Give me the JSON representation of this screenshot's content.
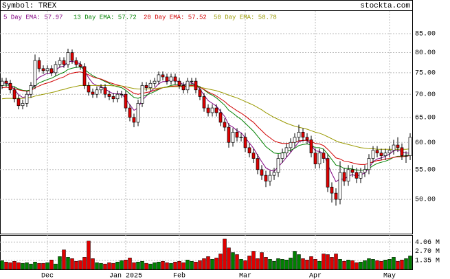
{
  "chart_data": [
    {
      "type": "candlestick",
      "title": "Symbol: TREX",
      "source": "stockta.com",
      "open": [
        72,
        73,
        72.5,
        71,
        69,
        67.5,
        68,
        70,
        72,
        78,
        76,
        75.5,
        76,
        75,
        77,
        78,
        77,
        80,
        78,
        77,
        76.5,
        72,
        70.5,
        70,
        71,
        71.5,
        70,
        69.5,
        69,
        70,
        70,
        67,
        65,
        64,
        68,
        72,
        71.5,
        72.5,
        73,
        74.5,
        74,
        73,
        74,
        73,
        72,
        71,
        73,
        73,
        71,
        69.5,
        67,
        66,
        67,
        66,
        64,
        63,
        60,
        62,
        61,
        61,
        59,
        58,
        57,
        55,
        54,
        53,
        54,
        54.5,
        57,
        58,
        59,
        60,
        61,
        62,
        61,
        60.5,
        58,
        56,
        58,
        57,
        52,
        51,
        50,
        54.5,
        53,
        55,
        54.5,
        53.5,
        54.5,
        55,
        57,
        58.5,
        58,
        57.5,
        58,
        58.5,
        59.5,
        59,
        57.5,
        57.5
      ],
      "high": [
        73.8,
        73.8,
        73.3,
        71.8,
        69.8,
        68.8,
        70.8,
        72.8,
        79.5,
        78.8,
        76.8,
        76.8,
        76.8,
        77.8,
        78.8,
        78.8,
        81,
        80.8,
        78.8,
        77.8,
        77.3,
        72.8,
        71.3,
        71.8,
        72.3,
        72.3,
        70.8,
        70.3,
        70.8,
        70.8,
        70.8,
        67.8,
        65.8,
        68.8,
        72.8,
        72.8,
        73.3,
        73.8,
        75.3,
        75.3,
        74.8,
        74.8,
        74.8,
        73.8,
        72.8,
        73.8,
        73.8,
        73.8,
        71.8,
        70.3,
        67.8,
        67.8,
        67.8,
        66.8,
        64.8,
        63.8,
        62.8,
        62.8,
        61.8,
        61.8,
        59.8,
        58.8,
        57.8,
        55.8,
        54.8,
        54.8,
        55.3,
        57.8,
        58.8,
        59.8,
        60.8,
        61.8,
        63.5,
        62.8,
        61.8,
        61.3,
        58.8,
        58.8,
        58.8,
        57.8,
        52.8,
        51.8,
        56.5,
        55.3,
        55.8,
        55.8,
        55.3,
        55.3,
        55.8,
        57.8,
        59.3,
        59.3,
        58.8,
        58.8,
        59.3,
        60.5,
        61,
        59.8,
        58.3,
        61.8
      ],
      "low": [
        71.2,
        71.7,
        70.2,
        68.2,
        66.7,
        66.7,
        67.2,
        69.2,
        71.2,
        75.2,
        74.7,
        74.7,
        74.2,
        74.2,
        76.2,
        76.2,
        76.2,
        77.2,
        76.2,
        75.7,
        71.2,
        69.7,
        69.2,
        69.2,
        70.2,
        69.2,
        68.7,
        68.2,
        68.2,
        69.2,
        66.2,
        64.2,
        63,
        63.2,
        67.2,
        70.7,
        70.7,
        71.7,
        72.2,
        73.2,
        72.2,
        72.2,
        72.2,
        71.2,
        70.2,
        70.2,
        72.2,
        70.2,
        68.7,
        66.2,
        65.2,
        65.2,
        65.2,
        63.2,
        62.2,
        59,
        59.2,
        60.2,
        60.2,
        58.2,
        57.2,
        56.2,
        54.2,
        53.2,
        52,
        52.2,
        53.2,
        53.7,
        56.2,
        57.2,
        58.2,
        59.2,
        60.2,
        60.2,
        59.7,
        57.2,
        55.2,
        55.2,
        56.2,
        51.2,
        49.5,
        49,
        49.2,
        52.2,
        52.2,
        53.7,
        52.7,
        52.7,
        53.7,
        54.2,
        56.2,
        57.2,
        56.7,
        56.7,
        57.2,
        57.7,
        58.2,
        56.7,
        56.2,
        56.7
      ],
      "close": [
        73,
        72.5,
        71,
        69,
        67.5,
        68,
        70,
        72,
        78,
        76,
        75.5,
        76,
        75,
        77,
        78,
        77,
        80,
        78,
        77,
        76.5,
        72,
        70.5,
        70,
        71,
        71.5,
        70,
        69.5,
        69,
        70,
        70,
        67,
        65,
        64,
        68,
        72,
        71.5,
        72.5,
        73,
        74.5,
        74,
        73,
        74,
        73,
        72,
        71,
        73,
        73,
        71,
        69.5,
        67,
        66,
        67,
        66,
        64,
        63,
        60,
        62,
        61,
        61,
        59,
        58,
        57,
        55,
        54,
        53,
        54,
        54.5,
        57,
        58,
        59,
        60,
        61,
        62,
        61,
        60.5,
        58,
        56,
        58,
        57,
        52,
        51,
        50,
        54.5,
        53,
        55,
        54.5,
        53.5,
        54.5,
        55,
        57,
        58.5,
        58,
        57.5,
        58,
        58.5,
        59.5,
        59,
        57.5,
        57.5,
        61
      ],
      "up_color": "#ffffff",
      "down_color": "#e00000",
      "series": [
        {
          "name": "5 Day EMA: 57.97",
          "color": "#800080",
          "values": [
            72.5,
            72.6,
            72.1,
            71.1,
            69.9,
            69.3,
            69.5,
            70.3,
            72.9,
            73.9,
            74.4,
            74.9,
            74.9,
            75.6,
            76.4,
            76.6,
            77.7,
            77.8,
            77.5,
            77.2,
            75.5,
            73.8,
            72.5,
            72.0,
            71.8,
            71.2,
            70.6,
            70.1,
            70.1,
            70.1,
            69.0,
            67.7,
            66.5,
            67.0,
            68.7,
            69.6,
            70.6,
            71.4,
            72.4,
            72.9,
            72.9,
            73.3,
            73.2,
            72.8,
            72.2,
            72.5,
            72.6,
            72.1,
            71.2,
            69.8,
            68.6,
            68.0,
            67.4,
            66.3,
            65.2,
            63.5,
            63.0,
            62.3,
            61.9,
            60.9,
            59.9,
            58.9,
            57.6,
            56.4,
            55.3,
            54.9,
            54.7,
            55.5,
            56.3,
            57.2,
            58.1,
            59.1,
            60.1,
            60.4,
            60.4,
            59.6,
            58.4,
            58.3,
            57.9,
            55.9,
            54.3,
            52.9,
            53.4,
            53.3,
            53.9,
            54.1,
            53.9,
            54.1,
            54.4,
            55.3,
            56.4,
            56.9,
            57.1,
            57.4,
            57.8,
            58.4,
            58.6,
            58.2,
            58.0,
            57.97
          ]
        },
        {
          "name": "13 Day EMA: 57.72",
          "color": "#008000",
          "values": [
            72.0,
            72.1,
            72.0,
            71.7,
            71.2,
            70.9,
            70.8,
            71.0,
            72.0,
            72.6,
            73.0,
            73.4,
            73.7,
            74.2,
            74.7,
            75.1,
            75.8,
            76.1,
            76.3,
            76.4,
            75.8,
            75.0,
            74.3,
            73.8,
            73.4,
            72.9,
            72.5,
            72.0,
            71.7,
            71.5,
            70.9,
            70.1,
            69.3,
            69.1,
            69.5,
            69.8,
            70.2,
            70.6,
            71.1,
            71.5,
            71.7,
            72.0,
            72.2,
            72.2,
            72.0,
            72.2,
            72.3,
            72.1,
            71.7,
            71.0,
            70.3,
            69.8,
            69.2,
            68.4,
            67.6,
            66.5,
            65.9,
            65.2,
            64.6,
            63.8,
            63.0,
            62.2,
            61.2,
            60.2,
            59.2,
            58.6,
            58.0,
            57.9,
            58.0,
            58.3,
            58.5,
            58.9,
            59.4,
            59.6,
            59.7,
            59.5,
            59.0,
            59.0,
            58.7,
            57.8,
            56.8,
            55.8,
            55.6,
            55.2,
            55.2,
            55.1,
            54.9,
            54.9,
            54.9,
            55.2,
            55.7,
            56.1,
            56.3,
            56.5,
            56.8,
            57.2,
            57.4,
            57.4,
            57.5,
            57.72
          ]
        },
        {
          "name": "20 Day EMA: 57.52",
          "color": "#d00000",
          "values": [
            71.5,
            71.6,
            71.5,
            71.3,
            71.0,
            70.8,
            70.7,
            70.8,
            71.5,
            71.9,
            72.3,
            72.6,
            72.9,
            73.3,
            73.7,
            74.0,
            74.6,
            74.9,
            75.1,
            75.2,
            74.9,
            74.5,
            74.0,
            73.7,
            73.5,
            73.1,
            72.7,
            72.4,
            72.1,
            71.9,
            71.4,
            70.8,
            70.2,
            70.0,
            70.2,
            70.4,
            70.6,
            70.9,
            71.2,
            71.5,
            71.6,
            71.8,
            71.9,
            71.9,
            71.8,
            71.9,
            72.0,
            71.9,
            71.6,
            71.1,
            70.5,
            70.1,
            69.6,
            69.0,
            68.4,
            67.6,
            67.0,
            66.4,
            65.9,
            65.3,
            64.6,
            64.0,
            63.1,
            62.3,
            61.5,
            60.9,
            60.3,
            60.0,
            59.8,
            59.8,
            59.9,
            60.1,
            60.3,
            60.4,
            60.4,
            60.2,
            59.8,
            59.7,
            59.4,
            58.7,
            57.9,
            57.1,
            56.9,
            56.5,
            56.4,
            56.2,
            56.0,
            55.9,
            55.9,
            56.1,
            56.4,
            56.6,
            56.7,
            56.9,
            57.0,
            57.2,
            57.3,
            57.3,
            57.4,
            57.52
          ]
        },
        {
          "name": "50 Day EMA: 58.78",
          "color": "#999900",
          "values": [
            69.0,
            69.1,
            69.1,
            69.1,
            69.1,
            69.1,
            69.2,
            69.3,
            69.6,
            69.8,
            70.0,
            70.2,
            70.4,
            70.6,
            70.9,
            71.1,
            71.4,
            71.6,
            71.8,
            72.0,
            72.0,
            72.0,
            72.0,
            72.0,
            72.0,
            72.0,
            72.0,
            71.9,
            71.9,
            71.9,
            71.7,
            71.5,
            71.3,
            71.2,
            71.2,
            71.2,
            71.3,
            71.3,
            71.4,
            71.5,
            71.6,
            71.7,
            71.7,
            71.7,
            71.7,
            71.7,
            71.8,
            71.7,
            71.6,
            71.4,
            71.2,
            71.0,
            70.8,
            70.5,
            70.2,
            69.8,
            69.5,
            69.2,
            68.8,
            68.4,
            68.0,
            67.6,
            67.1,
            66.6,
            66.0,
            65.5,
            65.0,
            64.6,
            64.2,
            63.8,
            63.5,
            63.2,
            63.0,
            62.8,
            62.6,
            62.3,
            62.0,
            61.8,
            61.5,
            61.1,
            60.7,
            60.3,
            60.0,
            59.8,
            59.6,
            59.4,
            59.2,
            59.0,
            58.9,
            58.8,
            58.8,
            58.7,
            58.7,
            58.7,
            58.7,
            58.7,
            58.7,
            58.7,
            58.7,
            58.78
          ]
        }
      ],
      "log_scale": true,
      "grid": true,
      "ylim": [
        44.8,
        91.4
      ],
      "yticks": [
        {
          "value": 85,
          "label": "85.00"
        },
        {
          "value": 80,
          "label": "80.00"
        },
        {
          "value": 75,
          "label": "75.00"
        },
        {
          "value": 70,
          "label": "70.00"
        },
        {
          "value": 65,
          "label": "65.00"
        },
        {
          "value": 60,
          "label": "60.00"
        },
        {
          "value": 55,
          "label": "55.00"
        },
        {
          "value": 50,
          "label": "50.00"
        }
      ]
    },
    {
      "type": "bar",
      "grid": true,
      "up_color": "#008000",
      "down_color": "#e00000",
      "values": [
        1.3,
        1.1,
        1.0,
        1.2,
        1.0,
        0.9,
        1.0,
        0.8,
        1.1,
        0.9,
        0.9,
        1.0,
        1.4,
        0.8,
        1.9,
        2.9,
        1.8,
        1.6,
        1.2,
        1.3,
        1.8,
        4.2,
        1.6,
        1.0,
        0.9,
        0.8,
        1.0,
        0.9,
        1.1,
        1.3,
        1.4,
        1.7,
        1.0,
        1.1,
        1.2,
        0.9,
        0.8,
        1.0,
        1.1,
        1.2,
        1.0,
        0.9,
        1.1,
        1.2,
        1.0,
        1.4,
        1.2,
        1.1,
        1.3,
        1.6,
        1.9,
        1.5,
        1.7,
        2.3,
        4.5,
        3.2,
        2.5,
        2.2,
        1.5,
        1.3,
        2.0,
        2.7,
        1.6,
        2.5,
        1.8,
        1.5,
        1.2,
        1.6,
        1.5,
        1.4,
        1.7,
        2.7,
        2.2,
        1.6,
        1.4,
        1.9,
        1.5,
        1.2,
        2.3,
        2.2,
        1.8,
        2.3,
        1.5,
        1.2,
        1.4,
        1.3,
        1.0,
        1.1,
        1.3,
        1.6,
        1.5,
        1.3,
        1.2,
        1.4,
        1.5,
        1.8,
        1.2,
        1.4,
        1.6,
        2.0
      ],
      "ylim": [
        0,
        5.1
      ],
      "yticks": [
        {
          "value": 4.06,
          "label": "4.06 M"
        },
        {
          "value": 2.7,
          "label": "2.70 M"
        },
        {
          "value": 1.35,
          "label": "1.35 M"
        }
      ],
      "xticks": [
        {
          "value": 11,
          "label": "Dec"
        },
        {
          "value": 30,
          "label": "Jan 2025"
        },
        {
          "value": 43,
          "label": "Feb"
        },
        {
          "value": 59,
          "label": "Mar"
        },
        {
          "value": 76,
          "label": "Apr"
        },
        {
          "value": 94,
          "label": "May"
        }
      ]
    }
  ]
}
